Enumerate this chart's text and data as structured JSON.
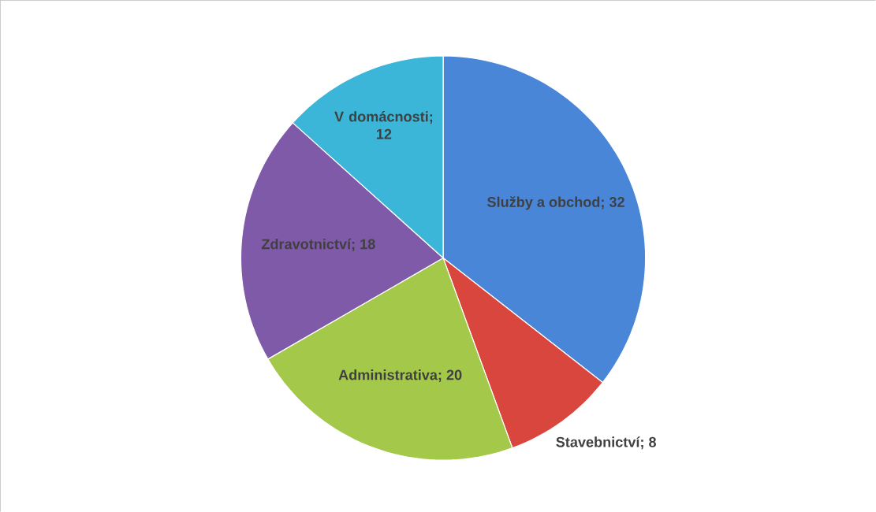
{
  "chart_data": {
    "type": "pie",
    "categories": [
      "Služby a obchod",
      "Stavebnictví",
      "Administrativa",
      "Zdravotnictví",
      "V domácnosti"
    ],
    "values": [
      32,
      8,
      20,
      18,
      12
    ],
    "value_labels": [
      "; 32",
      "; 8",
      "; 20",
      "; 18",
      "; 12"
    ],
    "colors": [
      "#4a86d8",
      "#d9463e",
      "#a3c84a",
      "#7f5aa8",
      "#3bb6d8"
    ]
  }
}
